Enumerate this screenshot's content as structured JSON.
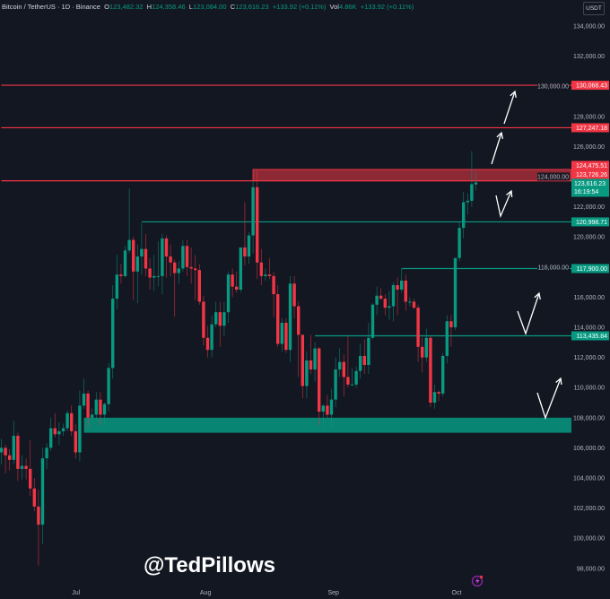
{
  "header": {
    "symbol": "Bitcoin / TetherUS · 1D · Binance",
    "o_label": "O",
    "o": "123,482.32",
    "h_label": "H",
    "h": "124,358.46",
    "l_label": "L",
    "l": "123,084.00",
    "c_label": "C",
    "c": "123,616.23",
    "change": "+133.92 (+0.11%)",
    "vol_label": "Vol",
    "vol": "4.86K",
    "vol_change": "+133.92 (+0.11%)"
  },
  "currency_button": "USDT",
  "watermark": "@TedPillows",
  "icons": {
    "alert": "lightning-icon"
  },
  "colors": {
    "up": "#089981",
    "down": "#f23645",
    "background": "#131722",
    "support": "#089981",
    "resistance": "#f23645"
  },
  "chart_data": {
    "type": "candlestick",
    "timeframe": "1D",
    "x_start": "2025-06-13",
    "x_ticks": [
      {
        "label": "Jul",
        "index": 18
      },
      {
        "label": "Aug",
        "index": 49
      },
      {
        "label": "Sep",
        "index": 80
      },
      {
        "label": "Oct",
        "index": 110
      }
    ],
    "ylim": [
      97000,
      135000
    ],
    "y_ticks": [
      98000,
      100000,
      102000,
      104000,
      106000,
      108000,
      110000,
      112000,
      114000,
      116000,
      118000,
      120000,
      122000,
      124000,
      126000,
      128000,
      130000,
      132000,
      134000
    ],
    "y_tick_labels": [
      "98,000.00",
      "100,000.00",
      "102,000.00",
      "104,000.00",
      "106,000.00",
      "108,000.00",
      "110,000.00",
      "112,000.00",
      "114,000.00",
      "116,000.00",
      "118,000.00",
      "120,000.00",
      "122,000.00",
      "124,000.00",
      "126,000.00",
      "128,000.00",
      "130,000.00",
      "132,000.00",
      "134,000.00"
    ],
    "candles": [
      [
        105700,
        106600,
        104900,
        106000
      ],
      [
        106000,
        106200,
        104300,
        105500
      ],
      [
        105500,
        105900,
        104500,
        105200
      ],
      [
        105200,
        107800,
        104900,
        106800
      ],
      [
        106800,
        107000,
        103800,
        104600
      ],
      [
        104600,
        105500,
        103900,
        104800
      ],
      [
        104800,
        105300,
        103900,
        104600
      ],
      [
        104600,
        106500,
        102800,
        103300
      ],
      [
        103300,
        104000,
        101800,
        102100
      ],
      [
        102100,
        103200,
        98200,
        100900
      ],
      [
        100900,
        106000,
        99600,
        105300
      ],
      [
        105300,
        106300,
        104600,
        106000
      ],
      [
        106000,
        108000,
        105800,
        107300
      ],
      [
        107300,
        108300,
        106700,
        106900
      ],
      [
        106900,
        107700,
        106200,
        107100
      ],
      [
        107100,
        107600,
        106800,
        107300
      ],
      [
        107300,
        108500,
        107100,
        108300
      ],
      [
        108300,
        108800,
        106800,
        107100
      ],
      [
        107100,
        107600,
        105300,
        105700
      ],
      [
        105700,
        109800,
        105100,
        108800
      ],
      [
        108800,
        110600,
        108600,
        109600
      ],
      [
        109600,
        109800,
        107300,
        108000
      ],
      [
        108000,
        108600,
        107800,
        108200
      ],
      [
        108200,
        109700,
        107800,
        109200
      ],
      [
        109200,
        109700,
        107500,
        108200
      ],
      [
        108200,
        109000,
        107500,
        108900
      ],
      [
        108900,
        111600,
        108400,
        111300
      ],
      [
        111300,
        116800,
        110600,
        115900
      ],
      [
        115900,
        118800,
        115200,
        117500
      ],
      [
        117500,
        118200,
        116900,
        117400
      ],
      [
        117400,
        119400,
        117300,
        119100
      ],
      [
        119100,
        123200,
        118900,
        119800
      ],
      [
        119800,
        120000,
        115800,
        117700
      ],
      [
        117700,
        119500,
        115600,
        118700
      ],
      [
        118700,
        120900,
        117500,
        119200
      ],
      [
        119200,
        120200,
        117400,
        117900
      ],
      [
        117900,
        118600,
        116500,
        117300
      ],
      [
        117300,
        118800,
        116400,
        117400
      ],
      [
        117400,
        119700,
        116700,
        117400
      ],
      [
        117400,
        120200,
        116200,
        119900
      ],
      [
        119900,
        120100,
        117300,
        118700
      ],
      [
        118700,
        119500,
        117400,
        118300
      ],
      [
        118300,
        118500,
        114700,
        117600
      ],
      [
        117600,
        118400,
        116900,
        117900
      ],
      [
        117900,
        119800,
        117700,
        119400
      ],
      [
        119400,
        119800,
        117400,
        118000
      ],
      [
        118000,
        119300,
        116900,
        117900
      ],
      [
        117900,
        118800,
        115800,
        117800
      ],
      [
        117800,
        118200,
        115500,
        115700
      ],
      [
        115700,
        116100,
        112800,
        113300
      ],
      [
        113300,
        114100,
        112000,
        112500
      ],
      [
        112500,
        114800,
        112000,
        114200
      ],
      [
        114200,
        115700,
        114000,
        115000
      ],
      [
        115000,
        115700,
        112700,
        114100
      ],
      [
        114100,
        115700,
        113400,
        115000
      ],
      [
        115000,
        117700,
        114300,
        117500
      ],
      [
        117500,
        117900,
        116000,
        116700
      ],
      [
        116700,
        117700,
        116300,
        116500
      ],
      [
        116500,
        119300,
        116300,
        119300
      ],
      [
        119300,
        122300,
        118100,
        118700
      ],
      [
        118700,
        120300,
        118200,
        120100
      ],
      [
        120100,
        123700,
        118900,
        123300
      ],
      [
        123300,
        124400,
        117200,
        118300
      ],
      [
        118300,
        119200,
        116800,
        117400
      ],
      [
        117400,
        117900,
        117100,
        117500
      ],
      [
        117500,
        118600,
        117200,
        117400
      ],
      [
        117400,
        117700,
        114700,
        116200
      ],
      [
        116200,
        116800,
        112700,
        112900
      ],
      [
        112900,
        114600,
        112400,
        114300
      ],
      [
        114300,
        114600,
        112300,
        112500
      ],
      [
        112500,
        117400,
        111700,
        116900
      ],
      [
        116900,
        117400,
        114600,
        115400
      ],
      [
        115400,
        115700,
        110700,
        113500
      ],
      [
        113500,
        113500,
        109300,
        110100
      ],
      [
        110100,
        112400,
        109300,
        111800
      ],
      [
        111800,
        113500,
        110900,
        111200
      ],
      [
        111200,
        113000,
        110400,
        112600
      ],
      [
        112600,
        112700,
        107500,
        108400
      ],
      [
        108400,
        108900,
        107300,
        108800
      ],
      [
        108800,
        109500,
        108000,
        108200
      ],
      [
        108200,
        109900,
        107300,
        109200
      ],
      [
        109200,
        112000,
        108700,
        111200
      ],
      [
        111200,
        112600,
        110700,
        111700
      ],
      [
        111700,
        112200,
        109400,
        110700
      ],
      [
        110700,
        113400,
        110000,
        110200
      ],
      [
        110200,
        111300,
        110200,
        110200
      ],
      [
        110200,
        111400,
        110000,
        111100
      ],
      [
        111100,
        112900,
        110600,
        112100
      ],
      [
        112100,
        113200,
        110900,
        111500
      ],
      [
        111500,
        114300,
        110900,
        113300
      ],
      [
        113300,
        115600,
        113200,
        115500
      ],
      [
        115500,
        116700,
        114800,
        116100
      ],
      [
        116100,
        116600,
        115800,
        115900
      ],
      [
        115900,
        116200,
        114800,
        115300
      ],
      [
        115300,
        116400,
        114500,
        115400
      ],
      [
        115400,
        117000,
        114400,
        116800
      ],
      [
        116800,
        117300,
        114800,
        116500
      ],
      [
        116500,
        117900,
        116300,
        117100
      ],
      [
        117100,
        117500,
        115100,
        115700
      ],
      [
        115700,
        116000,
        115400,
        115700
      ],
      [
        115700,
        115900,
        115200,
        115300
      ],
      [
        115300,
        115500,
        111700,
        112700
      ],
      [
        112700,
        113300,
        111000,
        112000
      ],
      [
        112000,
        113900,
        111700,
        113300
      ],
      [
        113300,
        113400,
        108700,
        109000
      ],
      [
        109000,
        110200,
        108600,
        109700
      ],
      [
        109700,
        109800,
        109100,
        109600
      ],
      [
        109600,
        112300,
        109400,
        112100
      ],
      [
        112100,
        114800,
        111600,
        114400
      ],
      [
        114400,
        114800,
        112700,
        114000
      ],
      [
        114000,
        118600,
        113800,
        118600
      ],
      [
        118600,
        121000,
        118400,
        120600
      ],
      [
        120600,
        123000,
        119900,
        122300
      ],
      [
        122300,
        122900,
        121500,
        122400
      ],
      [
        122400,
        125700,
        122000,
        123500
      ],
      [
        123482.32,
        124358.46,
        123084,
        123616.23
      ]
    ],
    "horizontal_levels": [
      {
        "price": 130068.43,
        "label": "130,068.43",
        "kind": "resistance",
        "start_index": 0
      },
      {
        "price": 127247.18,
        "label": "127,247.18",
        "kind": "resistance",
        "start_index": 0
      },
      {
        "price": 123726.26,
        "label": "123,726.26",
        "kind": "resistance",
        "start_index": 0
      },
      {
        "price": 120998.71,
        "label": "120,998.71",
        "kind": "support",
        "start_index": 34
      },
      {
        "price": 117900.0,
        "label": "117,900.00",
        "kind": "support",
        "start_index": 97
      },
      {
        "price": 113435.84,
        "label": "113,435.84",
        "kind": "support",
        "start_index": 76
      }
    ],
    "zones": [
      {
        "from": 123726.26,
        "to": 124475.51,
        "label": "124,475.51",
        "kind": "resistance",
        "start_index": 61
      },
      {
        "from": 107000,
        "to": 108000,
        "kind": "support",
        "start_index": 20
      }
    ],
    "last_price": {
      "label": "123,616.23",
      "countdown": "16:19:54"
    }
  }
}
